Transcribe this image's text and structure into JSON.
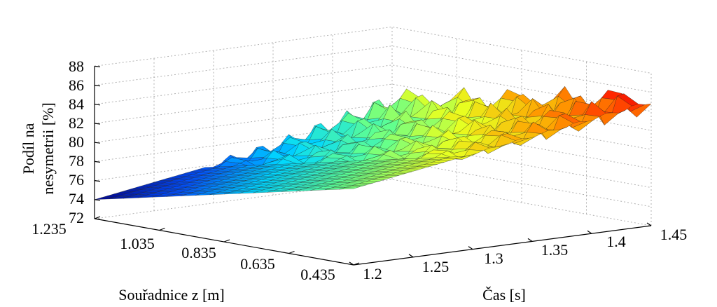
{
  "chart_data": {
    "type": "surface3d",
    "zlabel_line1": "Podíl na",
    "zlabel_line2": "nesymetrii [%]",
    "ylabel": "Souřadnice z [m]",
    "xlabel": "Čas [s]",
    "zlim": [
      72,
      88
    ],
    "ylim": [
      0.435,
      1.235
    ],
    "xlim": [
      1.2,
      1.45
    ],
    "z_ticks": [
      "72",
      "74",
      "76",
      "78",
      "80",
      "82",
      "84",
      "86",
      "88"
    ],
    "y_ticks": [
      "1.235",
      "1.035",
      "0.835",
      "0.635",
      "0.435"
    ],
    "x_ticks": [
      "1.2",
      "1.25",
      "1.3",
      "1.35",
      "1.4",
      "1.45"
    ],
    "grid": true,
    "colormap": "jet",
    "colormap_stops": [
      "#00008f",
      "#0050ff",
      "#00d8ff",
      "#60ff90",
      "#e8ff20",
      "#ffa000",
      "#ff2000",
      "#900000"
    ],
    "surface_trend": {
      "x": [
        1.2,
        1.25,
        1.3,
        1.35,
        1.4,
        1.45
      ],
      "z_at_y_min": [
        80.0,
        81.0,
        82.0,
        83.0,
        84.0,
        85.0
      ],
      "z_at_y_max": [
        74.0,
        75.0,
        76.0,
        77.0,
        78.5,
        80.0
      ]
    }
  }
}
